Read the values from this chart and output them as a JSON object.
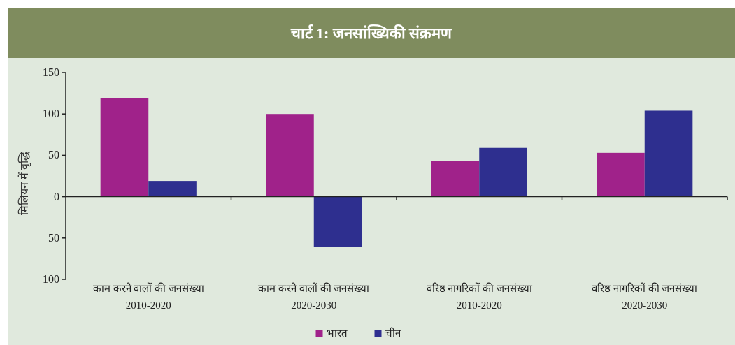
{
  "chart_data": {
    "type": "bar",
    "title": "चार्ट 1: जनसांख्यिकी संक्रमण",
    "ylabel": "मिलियन में वृद्धि",
    "categories": [
      "काम करने वालों की जनसंख्या\n2010-2020",
      "काम करने वालों की जनसंख्या\n2020-2030",
      "वरिष्ठ नागरिकों की जनसंख्या\n2010-2020",
      "वरिष्ठ नागरिकों की जनसंख्या\n2020-2030"
    ],
    "series": [
      {
        "name": "भारत",
        "color": "#a0228a",
        "values": [
          119,
          100,
          43,
          53
        ]
      },
      {
        "name": "चीन",
        "color": "#2e2f8f",
        "values": [
          19,
          -61,
          59,
          104
        ]
      }
    ],
    "ylim": [
      -100,
      150
    ],
    "yticks": [
      {
        "value": -100,
        "label": "100"
      },
      {
        "value": -50,
        "label": "50"
      },
      0,
      50,
      100,
      150
    ],
    "legend": "bottom"
  }
}
